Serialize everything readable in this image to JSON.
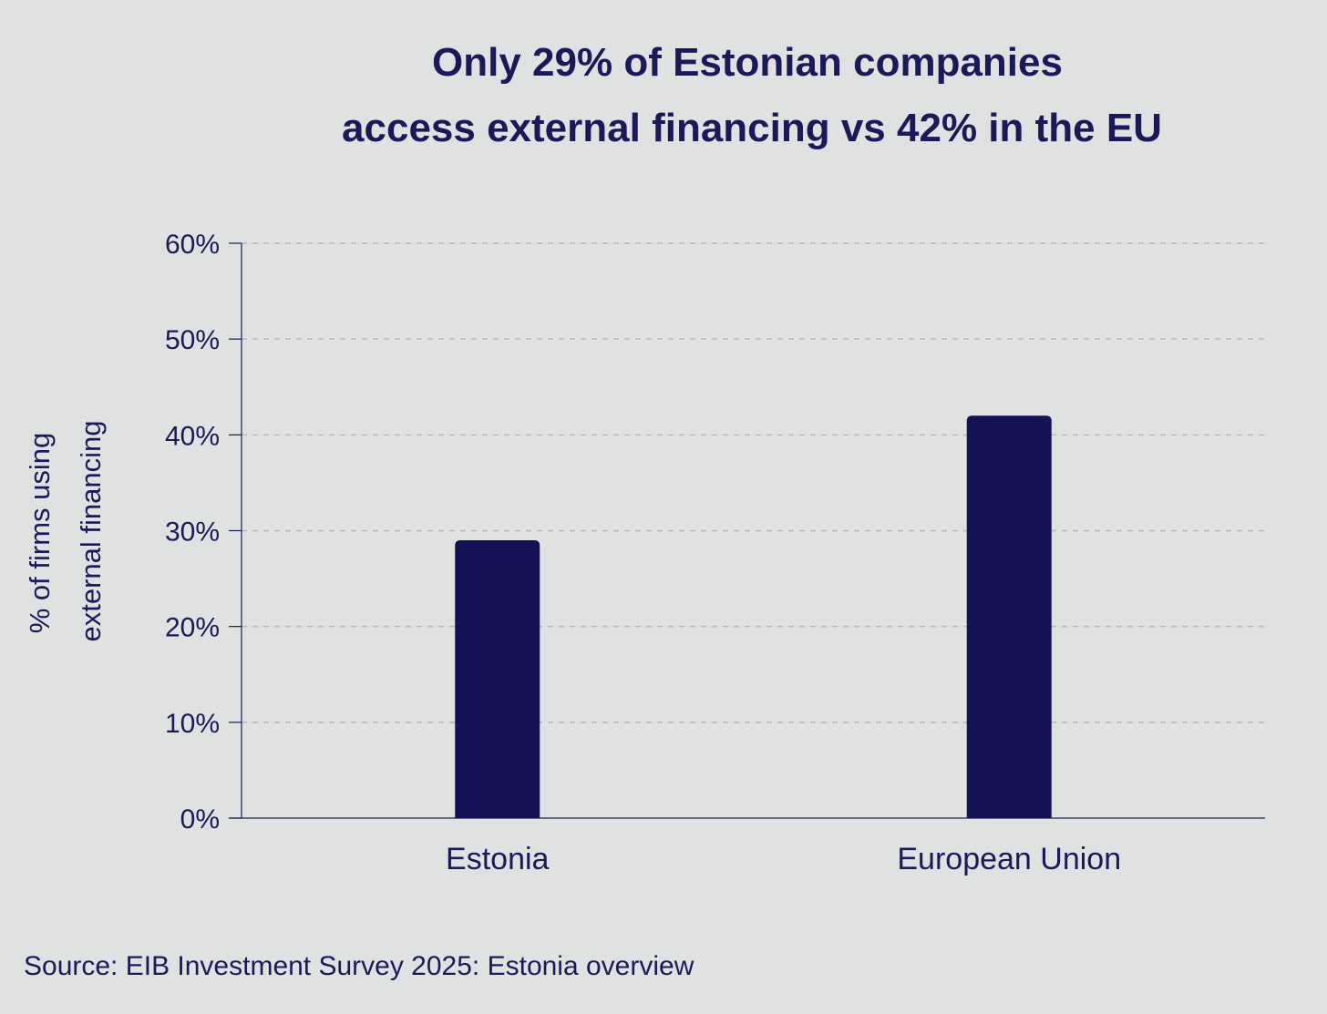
{
  "colors": {
    "background": "#e0e1e1",
    "bar": "#121254",
    "text": "#1a1a5a",
    "grid": "#b7b8b8",
    "axis": "#1a1a5a"
  },
  "chart_data": {
    "type": "bar",
    "title_lines": [
      "Only 29% of Estonian companies",
      "access external financing vs 42% in the EU"
    ],
    "ylabel_lines": [
      "% of firms using",
      "external financing"
    ],
    "xlabel": "",
    "categories": [
      "Estonia",
      "European Union"
    ],
    "values": [
      29,
      42
    ],
    "ylim": [
      0,
      60
    ],
    "yticks": [
      0,
      10,
      20,
      30,
      40,
      50,
      60
    ],
    "ytick_labels": [
      "0%",
      "10%",
      "20%",
      "30%",
      "40%",
      "50%",
      "60%"
    ],
    "grid": "horizontal dashed",
    "legend": "none"
  },
  "source": "Source: EIB Investment Survey 2025: Estonia overview"
}
